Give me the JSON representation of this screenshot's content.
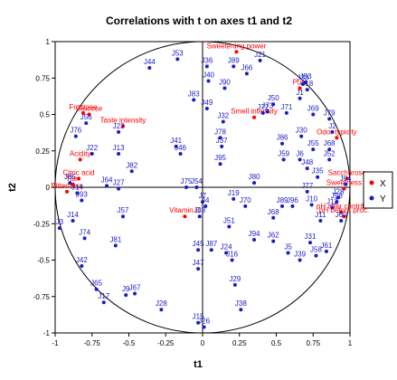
{
  "chart_data": {
    "type": "scatter",
    "title": "Correlations with t on axes t1 and t2",
    "xlabel": "t1",
    "ylabel": "t2",
    "xlim": [
      -1,
      1
    ],
    "ylim": [
      -1,
      1
    ],
    "xticks": [
      "-1",
      "-0.75",
      "-0.5",
      "-0.25",
      "0",
      "0.25",
      "0.5",
      "0.75",
      "1"
    ],
    "yticks": [
      "-1",
      "-0.75",
      "-0.5",
      "-0.25",
      "0",
      "0.25",
      "0.5",
      "0.75",
      "1"
    ],
    "xtick_values": [
      -1,
      -0.75,
      -0.5,
      -0.25,
      0,
      0.25,
      0.5,
      0.75,
      1
    ],
    "ytick_values": [
      -1,
      -0.75,
      -0.5,
      -0.25,
      0,
      0.25,
      0.5,
      0.75,
      1
    ],
    "grid": false,
    "unit_circle": true,
    "legend_position": "right",
    "series": [
      {
        "name": "X",
        "color": "#ff0000",
        "points": [
          {
            "label": "Sweetening power",
            "x": 0.23,
            "y": 0.93
          },
          {
            "label": "Pulp",
            "x": 0.66,
            "y": 0.68
          },
          {
            "label": "Smell intensity",
            "x": 0.35,
            "y": 0.48
          },
          {
            "label": "Glucose",
            "x": -0.77,
            "y": 0.5
          },
          {
            "label": "Fructose",
            "x": -0.81,
            "y": 0.51
          },
          {
            "label": "Taste intensity",
            "x": -0.54,
            "y": 0.42
          },
          {
            "label": "Odor typicity",
            "x": 0.91,
            "y": 0.34
          },
          {
            "label": "Acidity",
            "x": -0.83,
            "y": 0.19
          },
          {
            "label": "Saccharose",
            "x": 0.98,
            "y": 0.06
          },
          {
            "label": "Citric acid",
            "x": -0.84,
            "y": 0.06
          },
          {
            "label": "Titer",
            "x": -0.88,
            "y": 0.02
          },
          {
            "label": "Sweetness",
            "x": 0.96,
            "y": -0.01
          },
          {
            "label": "Bitterness",
            "x": -0.92,
            "y": -0.03
          },
          {
            "label": "Vitamin C",
            "x": -0.12,
            "y": -0.2
          },
          {
            "label": "pH after centrif.",
            "x": 0.94,
            "y": -0.17
          },
          {
            "label": "pH before proc.",
            "x": 0.96,
            "y": -0.2
          }
        ]
      },
      {
        "name": "Y",
        "color": "#1a1ac8",
        "points": [
          {
            "label": "J53",
            "x": -0.17,
            "y": 0.88
          },
          {
            "label": "J44",
            "x": -0.36,
            "y": 0.82
          },
          {
            "label": "J21",
            "x": 0.39,
            "y": 0.87
          },
          {
            "label": "J36",
            "x": 0.03,
            "y": 0.83
          },
          {
            "label": "J89",
            "x": 0.21,
            "y": 0.83
          },
          {
            "label": "J66",
            "x": 0.3,
            "y": 0.78
          },
          {
            "label": "J40",
            "x": 0.04,
            "y": 0.73
          },
          {
            "label": "J90",
            "x": 0.15,
            "y": 0.68
          },
          {
            "label": "J33",
            "x": 0.68,
            "y": 0.71
          },
          {
            "label": "J93",
            "x": 0.7,
            "y": 0.72
          },
          {
            "label": "J18",
            "x": 0.71,
            "y": 0.67
          },
          {
            "label": "J1",
            "x": 0.66,
            "y": 0.61
          },
          {
            "label": "J83",
            "x": -0.06,
            "y": 0.6
          },
          {
            "label": "J49",
            "x": 0.03,
            "y": 0.54
          },
          {
            "label": "J50",
            "x": 0.48,
            "y": 0.57
          },
          {
            "label": "J71",
            "x": 0.57,
            "y": 0.51
          },
          {
            "label": "J72",
            "x": 0.41,
            "y": 0.51
          },
          {
            "label": "J73",
            "x": 0.44,
            "y": 0.52
          },
          {
            "label": "J69",
            "x": 0.75,
            "y": 0.5
          },
          {
            "label": "J79",
            "x": 0.86,
            "y": 0.47
          },
          {
            "label": "J56",
            "x": -0.79,
            "y": 0.44
          },
          {
            "label": "J76",
            "x": -0.86,
            "y": 0.35
          },
          {
            "label": "J23",
            "x": -0.57,
            "y": 0.38
          },
          {
            "label": "J32",
            "x": 0.14,
            "y": 0.45
          },
          {
            "label": "J2",
            "x": 0.88,
            "y": 0.38
          },
          {
            "label": "J30",
            "x": 0.67,
            "y": 0.35
          },
          {
            "label": "J78",
            "x": 0.12,
            "y": 0.34
          },
          {
            "label": "J37",
            "x": 0.13,
            "y": 0.28
          },
          {
            "label": "J41",
            "x": -0.18,
            "y": 0.28
          },
          {
            "label": "J46",
            "x": -0.15,
            "y": 0.23
          },
          {
            "label": "J86",
            "x": 0.54,
            "y": 0.3
          },
          {
            "label": "J55",
            "x": 0.75,
            "y": 0.26
          },
          {
            "label": "J68",
            "x": 0.86,
            "y": 0.26
          },
          {
            "label": "J22",
            "x": -0.75,
            "y": 0.23
          },
          {
            "label": "J13",
            "x": -0.57,
            "y": 0.23
          },
          {
            "label": "J59",
            "x": 0.55,
            "y": 0.19
          },
          {
            "label": "J6",
            "x": 0.66,
            "y": 0.19
          },
          {
            "label": "J52",
            "x": 0.86,
            "y": 0.19
          },
          {
            "label": "J95",
            "x": 0.12,
            "y": 0.16
          },
          {
            "label": "J48",
            "x": 0.71,
            "y": 0.13
          },
          {
            "label": "J82",
            "x": -0.48,
            "y": 0.11
          },
          {
            "label": "J35",
            "x": 0.78,
            "y": 0.07
          },
          {
            "label": "J85",
            "x": -0.9,
            "y": 0.03
          },
          {
            "label": "J84",
            "x": 0.97,
            "y": 0.02
          },
          {
            "label": "J75",
            "x": -0.11,
            "y": 0.0
          },
          {
            "label": "J54",
            "x": -0.04,
            "y": 0.0
          },
          {
            "label": "J80",
            "x": 0.35,
            "y": 0.03
          },
          {
            "label": "J64",
            "x": -0.65,
            "y": 0.01
          },
          {
            "label": "J27",
            "x": -0.57,
            "y": -0.01
          },
          {
            "label": "J14",
            "x": -0.85,
            "y": -0.04
          },
          {
            "label": "J77",
            "x": 0.71,
            "y": -0.03
          },
          {
            "label": "J28",
            "x": 0.92,
            "y": -0.07
          },
          {
            "label": "J93",
            "x": -0.82,
            "y": -0.09
          },
          {
            "label": "J19",
            "x": 0.21,
            "y": -0.08
          },
          {
            "label": "J7",
            "x": 0.0,
            "y": -0.1
          },
          {
            "label": "J58",
            "x": 0.91,
            "y": -0.1
          },
          {
            "label": "J4",
            "x": 0.02,
            "y": -0.13
          },
          {
            "label": "J70",
            "x": 0.29,
            "y": -0.13
          },
          {
            "label": "J89",
            "x": 0.54,
            "y": -0.13
          },
          {
            "label": "J96",
            "x": 0.61,
            "y": -0.13
          },
          {
            "label": "J10",
            "x": 0.74,
            "y": -0.12
          },
          {
            "label": "J12",
            "x": 0.88,
            "y": -0.14
          },
          {
            "label": "J88",
            "x": -0.02,
            "y": -0.2
          },
          {
            "label": "J57",
            "x": -0.54,
            "y": -0.2
          },
          {
            "label": "J68",
            "x": 0.48,
            "y": -0.21
          },
          {
            "label": "J14",
            "x": -0.88,
            "y": -0.23
          },
          {
            "label": "J11",
            "x": 0.8,
            "y": -0.23
          },
          {
            "label": "J60",
            "x": 0.94,
            "y": -0.23
          },
          {
            "label": "J3",
            "x": -0.97,
            "y": -0.28
          },
          {
            "label": "J51",
            "x": 0.18,
            "y": -0.27
          },
          {
            "label": "J74",
            "x": -0.8,
            "y": -0.35
          },
          {
            "label": "J81",
            "x": -0.59,
            "y": -0.4
          },
          {
            "label": "J94",
            "x": 0.35,
            "y": -0.36
          },
          {
            "label": "J62",
            "x": 0.48,
            "y": -0.37
          },
          {
            "label": "J31",
            "x": 0.73,
            "y": -0.38
          },
          {
            "label": "J87",
            "x": 0.06,
            "y": -0.43
          },
          {
            "label": "J24",
            "x": 0.16,
            "y": -0.45
          },
          {
            "label": "J45",
            "x": -0.03,
            "y": -0.43
          },
          {
            "label": "J16",
            "x": 0.2,
            "y": -0.5
          },
          {
            "label": "J5",
            "x": 0.58,
            "y": -0.45
          },
          {
            "label": "J39",
            "x": 0.66,
            "y": -0.5
          },
          {
            "label": "J58",
            "x": 0.77,
            "y": -0.47
          },
          {
            "label": "J61",
            "x": 0.84,
            "y": -0.44
          },
          {
            "label": "J42",
            "x": -0.82,
            "y": -0.54
          },
          {
            "label": "J47",
            "x": -0.03,
            "y": -0.56
          },
          {
            "label": "J29",
            "x": 0.22,
            "y": -0.67
          },
          {
            "label": "J65",
            "x": -0.72,
            "y": -0.7
          },
          {
            "label": "J67",
            "x": -0.46,
            "y": -0.73
          },
          {
            "label": "J9",
            "x": -0.52,
            "y": -0.74
          },
          {
            "label": "J17",
            "x": -0.67,
            "y": -0.79
          },
          {
            "label": "J28",
            "x": -0.28,
            "y": -0.84
          },
          {
            "label": "J38",
            "x": 0.26,
            "y": -0.84
          },
          {
            "label": "J15",
            "x": -0.03,
            "y": -0.93
          },
          {
            "label": "J26",
            "x": 0.01,
            "y": -0.96
          }
        ]
      }
    ]
  }
}
